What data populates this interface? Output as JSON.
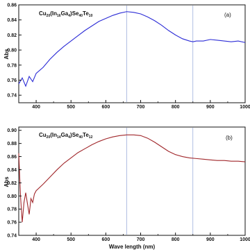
{
  "chart_data": [
    {
      "type": "line",
      "panel_label": "(a)",
      "compound": {
        "base1": "Cu",
        "sub1": "20",
        "base2": "(In",
        "sub2": "16",
        "base3": "Ga",
        "sub3": "4",
        "base4": ")Se",
        "sub4": "40",
        "base5": "Te",
        "sub5": "10"
      },
      "ylabel": "Abs",
      "xlabel": "",
      "xlim": [
        350,
        1000
      ],
      "ylim": [
        0.73,
        0.86
      ],
      "xticks": [
        "400",
        "500",
        "600",
        "700",
        "800",
        "900",
        "1000"
      ],
      "yticks": [
        "0.74",
        "0.76",
        "0.78",
        "0.80",
        "0.82",
        "0.84",
        "0.86"
      ],
      "vlines": [
        660,
        850
      ],
      "color": "#2b2bd6",
      "x": [
        350,
        360,
        370,
        380,
        390,
        400,
        420,
        440,
        460,
        480,
        500,
        520,
        540,
        560,
        580,
        600,
        620,
        640,
        660,
        680,
        700,
        720,
        740,
        760,
        780,
        800,
        820,
        840,
        850,
        860,
        880,
        900,
        920,
        940,
        960,
        980,
        1000
      ],
      "y": [
        0.755,
        0.763,
        0.752,
        0.765,
        0.758,
        0.769,
        0.777,
        0.788,
        0.797,
        0.805,
        0.812,
        0.819,
        0.826,
        0.832,
        0.838,
        0.842,
        0.846,
        0.849,
        0.851,
        0.85,
        0.848,
        0.844,
        0.839,
        0.833,
        0.826,
        0.82,
        0.815,
        0.812,
        0.811,
        0.812,
        0.812,
        0.814,
        0.813,
        0.812,
        0.811,
        0.812,
        0.81
      ]
    },
    {
      "type": "line",
      "panel_label": "(b)",
      "compound": {
        "base1": "Cu",
        "sub1": "20",
        "base2": "(In",
        "sub2": "14",
        "base3": "Ga",
        "sub3": "4",
        "base4": ")Se",
        "sub4": "40",
        "base5": "Te",
        "sub5": "12"
      },
      "ylabel": "Abs",
      "xlabel": "Wave length (nm)",
      "xlim": [
        350,
        1000
      ],
      "ylim": [
        0.74,
        0.905
      ],
      "xticks": [
        "400",
        "500",
        "600",
        "700",
        "800",
        "900",
        "1000"
      ],
      "yticks": [
        "0.74",
        "0.76",
        "0.78",
        "0.80",
        "0.82",
        "0.84",
        "0.86",
        "0.88",
        "0.90"
      ],
      "vlines": [
        660,
        850
      ],
      "color": "#a0262a",
      "x": [
        350,
        355,
        360,
        365,
        370,
        375,
        380,
        385,
        390,
        395,
        400,
        420,
        440,
        460,
        480,
        500,
        520,
        540,
        560,
        580,
        600,
        620,
        640,
        660,
        680,
        700,
        720,
        740,
        760,
        780,
        800,
        820,
        840,
        860,
        880,
        900,
        920,
        940,
        960,
        980,
        1000
      ],
      "y": [
        0.865,
        0.8,
        0.76,
        0.79,
        0.805,
        0.788,
        0.772,
        0.796,
        0.79,
        0.803,
        0.808,
        0.818,
        0.829,
        0.84,
        0.85,
        0.858,
        0.866,
        0.872,
        0.878,
        0.883,
        0.887,
        0.89,
        0.892,
        0.893,
        0.893,
        0.892,
        0.888,
        0.882,
        0.875,
        0.868,
        0.863,
        0.86,
        0.858,
        0.857,
        0.856,
        0.855,
        0.854,
        0.854,
        0.853,
        0.853,
        0.852
      ]
    }
  ]
}
